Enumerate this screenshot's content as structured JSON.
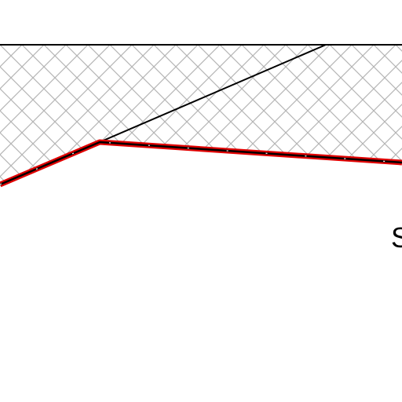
{
  "label": "S"
}
